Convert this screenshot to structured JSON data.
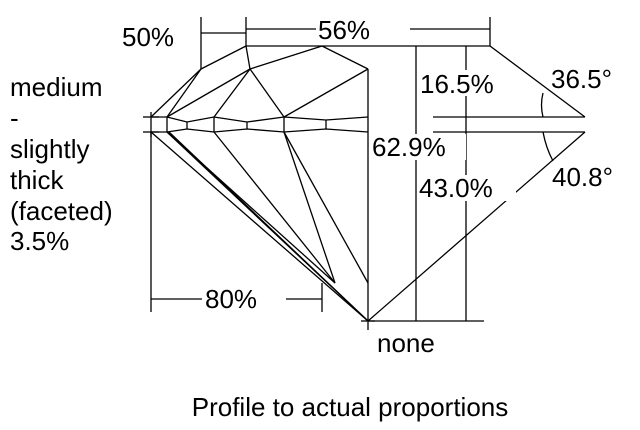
{
  "labels": {
    "crown_height_ratio": "50%",
    "table": "56%",
    "crown_height": "16.5%",
    "crown_angle": "36.5°",
    "total_depth": "62.9%",
    "pavilion_depth": "43.0%",
    "pavilion_angle": "40.8°",
    "lower_half": "80%",
    "culet": "none"
  },
  "girdle": {
    "lines": [
      "medium",
      "-",
      "slightly",
      "thick",
      "(faceted)",
      "3.5%"
    ]
  },
  "caption": "Profile to actual proportions"
}
